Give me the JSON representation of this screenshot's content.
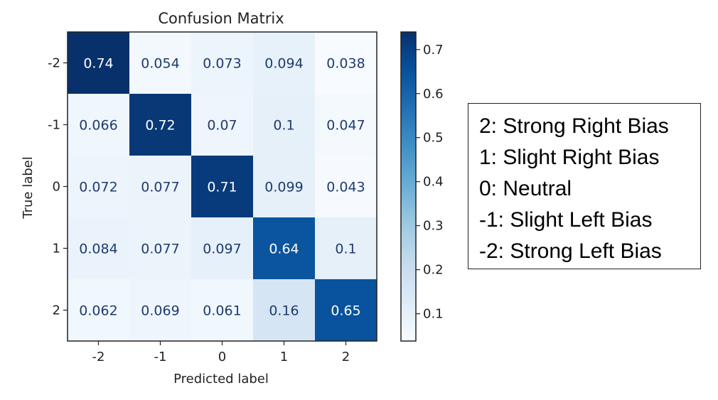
{
  "chart_data": {
    "type": "heatmap",
    "title": "Confusion Matrix",
    "xlabel": "Predicted label",
    "ylabel": "True label",
    "x_categories": [
      "-2",
      "-1",
      "0",
      "1",
      "2"
    ],
    "y_categories": [
      "-2",
      "-1",
      "0",
      "1",
      "2"
    ],
    "values": [
      [
        0.74,
        0.054,
        0.073,
        0.094,
        0.038
      ],
      [
        0.066,
        0.72,
        0.07,
        0.1,
        0.047
      ],
      [
        0.072,
        0.077,
        0.71,
        0.099,
        0.043
      ],
      [
        0.084,
        0.077,
        0.097,
        0.64,
        0.1
      ],
      [
        0.062,
        0.069,
        0.061,
        0.16,
        0.65
      ]
    ],
    "value_labels": [
      [
        "0.74",
        "0.054",
        "0.073",
        "0.094",
        "0.038"
      ],
      [
        "0.066",
        "0.72",
        "0.07",
        "0.1",
        "0.047"
      ],
      [
        "0.072",
        "0.077",
        "0.71",
        "0.099",
        "0.043"
      ],
      [
        "0.084",
        "0.077",
        "0.097",
        "0.64",
        "0.1"
      ],
      [
        "0.062",
        "0.069",
        "0.061",
        "0.16",
        "0.65"
      ]
    ],
    "colormap": "Blues",
    "colorbar": {
      "range": [
        0.038,
        0.74
      ],
      "ticks": [
        0.1,
        0.2,
        0.3,
        0.4,
        0.5,
        0.6,
        0.7
      ],
      "tick_labels": [
        "0.1",
        "0.2",
        "0.3",
        "0.4",
        "0.5",
        "0.6",
        "0.7"
      ]
    }
  },
  "legend": {
    "lines": [
      "2: Strong Right Bias",
      "1: Slight Right Bias",
      "0: Neutral",
      "-1: Slight Left Bias",
      "-2: Strong Left Bias"
    ]
  }
}
